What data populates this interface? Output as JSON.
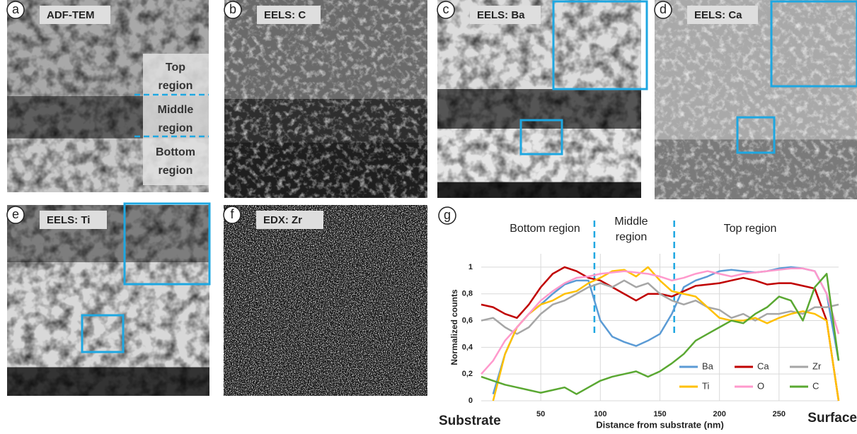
{
  "panels": [
    {
      "letter": "a",
      "title": "ADF-TEM",
      "labels": [
        [
          "Top",
          "region"
        ],
        [
          "Middle",
          "region"
        ],
        [
          "Bottom",
          "region"
        ]
      ]
    },
    {
      "letter": "b",
      "title": "EELS: C"
    },
    {
      "letter": "c",
      "title": "EELS: Ba"
    },
    {
      "letter": "d",
      "title": "EELS: Ca"
    },
    {
      "letter": "e",
      "title": "EELS: Ti"
    },
    {
      "letter": "f",
      "title": "EDX: Zr"
    }
  ],
  "chart_data": {
    "type": "line",
    "letter": "g",
    "x_label": "Distance from substrate (nm)",
    "y_label": "Normalized counts",
    "x_start_label": "Substrate",
    "x_end_label": "Surface",
    "region_labels": [
      [
        "Bottom region"
      ],
      [
        "Middle",
        "region"
      ],
      [
        "Top region"
      ]
    ],
    "region_dividers": [
      95,
      162
    ],
    "x": [
      0,
      10,
      20,
      30,
      40,
      50,
      60,
      70,
      80,
      90,
      100,
      110,
      120,
      130,
      140,
      150,
      160,
      170,
      180,
      190,
      200,
      210,
      220,
      230,
      240,
      250,
      260,
      270,
      280,
      290,
      300
    ],
    "xlim": [
      0,
      300
    ],
    "xticks": [
      50,
      100,
      150,
      200,
      250
    ],
    "ylim": [
      0,
      1.1
    ],
    "yticks": [
      0,
      {
        "value": 0.2,
        "label": "0,2"
      },
      {
        "value": 0.4,
        "label": "0,4"
      },
      {
        "value": 0.6,
        "label": "0,6"
      },
      {
        "value": 0.8,
        "label": "0,8"
      },
      1
    ],
    "grid": true,
    "series": [
      {
        "name": "Ba",
        "color": "#5b9bd5",
        "values": [
          null,
          0.05,
          0.35,
          0.55,
          0.65,
          0.72,
          0.8,
          0.87,
          0.9,
          0.9,
          0.6,
          0.48,
          0.44,
          0.41,
          0.45,
          0.5,
          0.65,
          0.85,
          0.9,
          0.93,
          0.97,
          0.98,
          0.97,
          0.96,
          0.97,
          0.99,
          1.0,
          0.99,
          0.97,
          0.8,
          0.3
        ]
      },
      {
        "name": "Ca",
        "color": "#c00000",
        "values": [
          0.72,
          0.7,
          0.65,
          0.62,
          0.72,
          0.85,
          0.95,
          1.0,
          0.97,
          0.92,
          0.9,
          0.85,
          0.8,
          0.75,
          0.8,
          0.8,
          0.78,
          0.82,
          0.86,
          0.87,
          0.88,
          0.9,
          0.92,
          0.9,
          0.87,
          0.88,
          0.88,
          0.86,
          0.84,
          0.6,
          0.0
        ]
      },
      {
        "name": "Zr",
        "color": "#a6a6a6",
        "values": [
          0.6,
          0.62,
          0.55,
          0.5,
          0.55,
          0.65,
          0.72,
          0.75,
          0.8,
          0.85,
          0.88,
          0.85,
          0.9,
          0.85,
          0.88,
          0.8,
          0.75,
          0.72,
          0.75,
          0.7,
          0.68,
          0.62,
          0.65,
          0.6,
          0.65,
          0.65,
          0.67,
          0.65,
          0.7,
          0.7,
          0.72
        ]
      },
      {
        "name": "Ti",
        "color": "#ffc000",
        "values": [
          null,
          0.0,
          0.35,
          0.55,
          0.65,
          0.72,
          0.75,
          0.8,
          0.82,
          0.88,
          0.92,
          0.97,
          0.98,
          0.93,
          1.0,
          0.9,
          0.82,
          0.8,
          0.78,
          0.7,
          0.62,
          0.6,
          0.6,
          0.62,
          0.58,
          0.62,
          0.65,
          0.67,
          0.65,
          0.6,
          0.0
        ]
      },
      {
        "name": "O",
        "color": "#ff99cc",
        "values": [
          0.2,
          0.3,
          0.45,
          0.55,
          0.65,
          0.75,
          0.82,
          0.88,
          0.92,
          0.93,
          0.95,
          0.96,
          0.97,
          0.96,
          0.95,
          0.93,
          0.9,
          0.92,
          0.95,
          0.97,
          0.95,
          0.93,
          0.95,
          0.96,
          0.97,
          0.98,
          0.99,
          0.99,
          0.97,
          0.8,
          0.5
        ]
      },
      {
        "name": "C",
        "color": "#5aa832",
        "values": [
          0.18,
          0.15,
          0.12,
          0.1,
          0.08,
          0.06,
          0.08,
          0.1,
          0.05,
          0.1,
          0.15,
          0.18,
          0.2,
          0.22,
          0.18,
          0.22,
          0.28,
          0.35,
          0.45,
          0.5,
          0.55,
          0.6,
          0.58,
          0.65,
          0.7,
          0.78,
          0.75,
          0.6,
          0.85,
          0.95,
          0.3
        ]
      }
    ]
  }
}
